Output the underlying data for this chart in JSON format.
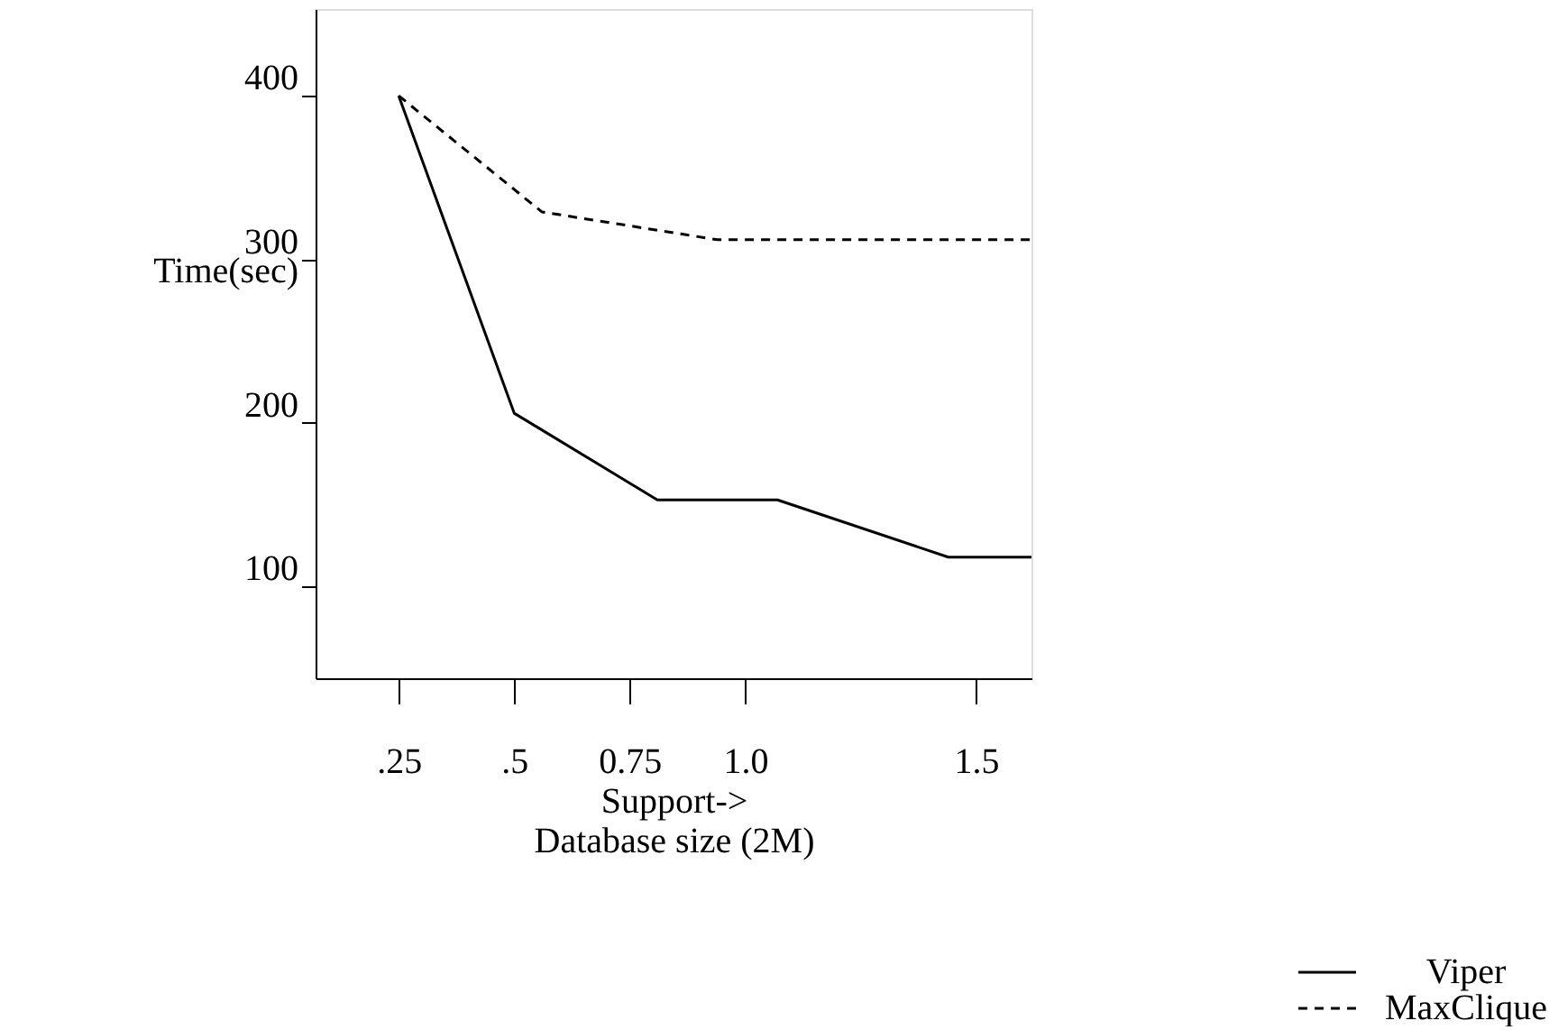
{
  "chart_data": {
    "type": "line",
    "xlabel": "Support->\nDatabase size (2M)",
    "ylabel": "Time(sec)",
    "xlim": [
      0.07,
      1.62
    ],
    "ylim": [
      44,
      453
    ],
    "xticks": [
      {
        "value": 0.25,
        "label": ".25"
      },
      {
        "value": 0.5,
        "label": ".5"
      },
      0.75,
      {
        "value": 1,
        "label": "1.0"
      },
      1.5
    ],
    "yticks": [
      100,
      200,
      300,
      400
    ],
    "grid": false,
    "legend": "bottom right",
    "marker": "none",
    "series": [
      {
        "name": "Viper",
        "color": "#000000",
        "line_style": "solid",
        "x": [
          0.25,
          0.5,
          0.81,
          1.07,
          1.44,
          1.62
        ],
        "values": [
          400,
          206,
          153,
          153,
          118,
          118
        ]
      },
      {
        "name": "MaxClique",
        "color": "#000000",
        "line_style": "dashed",
        "x": [
          0.25,
          0.56,
          0.94,
          1.62
        ],
        "values": [
          400,
          329,
          312,
          312
        ]
      }
    ]
  }
}
